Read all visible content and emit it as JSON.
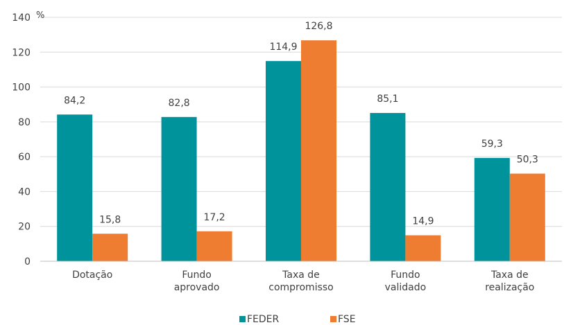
{
  "chart_data": {
    "type": "bar",
    "unit_label": "%",
    "categories": [
      [
        "Dotação"
      ],
      [
        "Fundo",
        "aprovado"
      ],
      [
        "Taxa de",
        "compromisso"
      ],
      [
        "Fundo",
        "validado"
      ],
      [
        "Taxa de",
        "realização"
      ]
    ],
    "series": [
      {
        "name": "FEDER",
        "color": "#00939b",
        "values": [
          84.2,
          82.8,
          114.9,
          85.1,
          59.3
        ],
        "value_labels": [
          "84,2",
          "82,8",
          "114,9",
          "85,1",
          "59,3"
        ]
      },
      {
        "name": "FSE",
        "color": "#ee7d31",
        "values": [
          15.8,
          17.2,
          126.8,
          14.9,
          50.3
        ],
        "value_labels": [
          "15,8",
          "17,2",
          "126,8",
          "14,9",
          "50,3"
        ]
      }
    ],
    "ylim": [
      0,
      140
    ],
    "yticks": [
      0,
      20,
      40,
      60,
      80,
      100,
      120,
      140
    ],
    "grid": true,
    "legend_position": "bottom"
  }
}
